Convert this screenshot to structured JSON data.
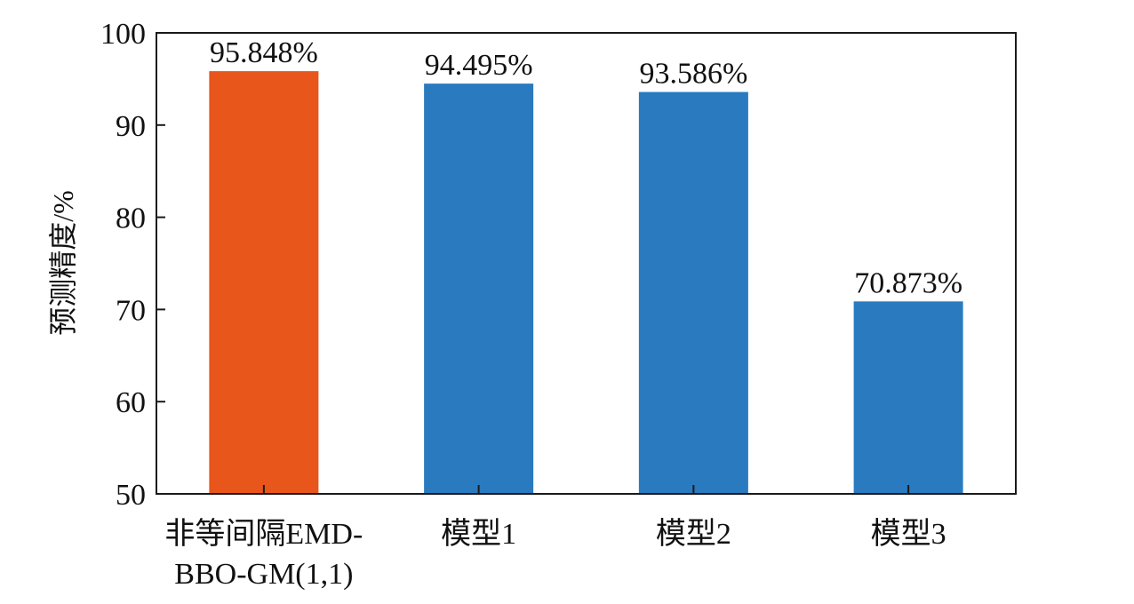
{
  "chart_data": {
    "type": "bar",
    "title": "",
    "xlabel": "",
    "ylabel": "预测精度/%",
    "ylim": [
      50,
      100
    ],
    "yticks": [
      50,
      60,
      70,
      80,
      90,
      100
    ],
    "grid": false,
    "categories": [
      [
        "非等间隔EMD-",
        "BBO-GM(1,1)"
      ],
      [
        "模型1"
      ],
      [
        "模型2"
      ],
      [
        "模型3"
      ]
    ],
    "values": [
      95.848,
      94.495,
      93.586,
      70.873
    ],
    "data_labels": [
      "95.848%",
      "94.495%",
      "93.586%",
      "70.873%"
    ],
    "colors": [
      "#E8561C",
      "#2A7ABF",
      "#2A7ABF",
      "#2A7ABF"
    ]
  }
}
